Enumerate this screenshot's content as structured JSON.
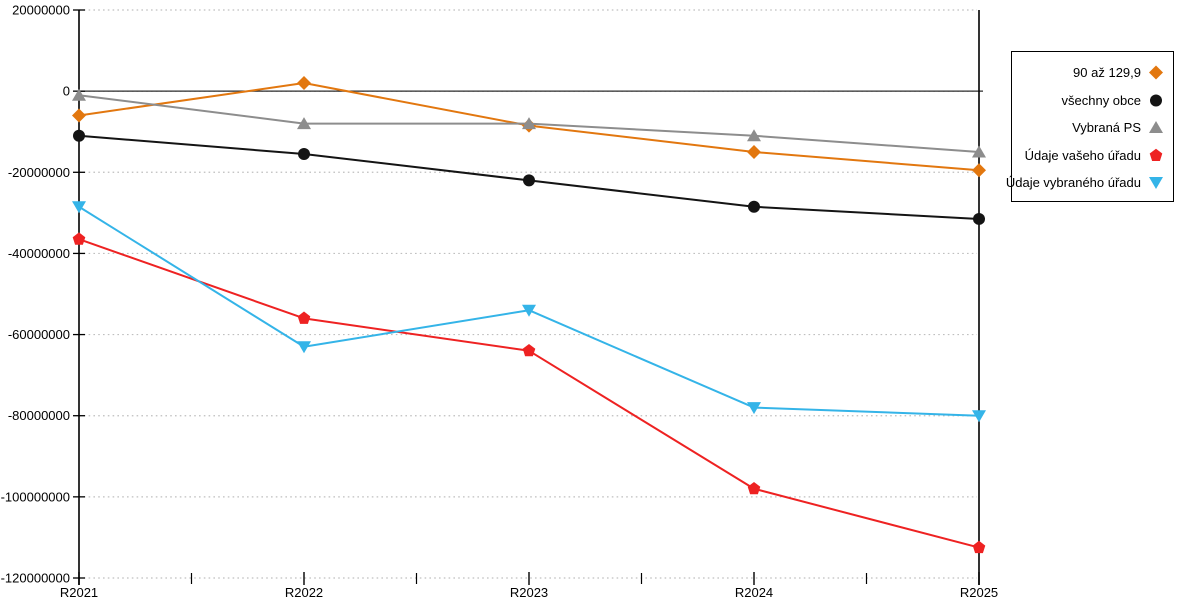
{
  "chart_data": {
    "type": "line",
    "categories": [
      "R2021",
      "R2022",
      "R2023",
      "R2024",
      "R2025"
    ],
    "series": [
      {
        "name": "90 až 129,9",
        "marker": "diamond",
        "color": "#e2770f",
        "values": [
          -6000000,
          2000000,
          -8500000,
          -15000000,
          -19500000
        ]
      },
      {
        "name": "všechny obce",
        "marker": "circle",
        "color": "#141414",
        "values": [
          -11000000,
          -15500000,
          -22000000,
          -28500000,
          -31500000
        ]
      },
      {
        "name": "Vybraná PS",
        "marker": "triangle-up",
        "color": "#8d8d8d",
        "values": [
          -1000000,
          -8000000,
          -8000000,
          -11000000,
          -15000000
        ]
      },
      {
        "name": "Údaje vašeho úřadu",
        "marker": "pentagon",
        "color": "#ee2222",
        "values": [
          -36500000,
          -56000000,
          -64000000,
          -98000000,
          -112500000
        ]
      },
      {
        "name": "Údaje vybraného úřadu",
        "marker": "triangle-down",
        "color": "#34b4e8",
        "values": [
          -28500000,
          -63000000,
          -54000000,
          -78000000,
          -80000000
        ]
      }
    ],
    "ylim": [
      -120000000,
      20000000
    ],
    "ytick_step": 20000000,
    "ytick_labels": [
      "20000000",
      "0",
      "-20000000",
      "-40000000",
      "-60000000",
      "-80000000",
      "-100000000",
      "-120000000"
    ],
    "grid": "horizontal-dotted",
    "legend_position": "top-right",
    "zero_line": true
  },
  "colors": {
    "background": "#ffffff",
    "grid": "#bfbfbf",
    "axis": "#000000",
    "zero_line": "#2b2b2b",
    "tick_label": "#000000"
  }
}
